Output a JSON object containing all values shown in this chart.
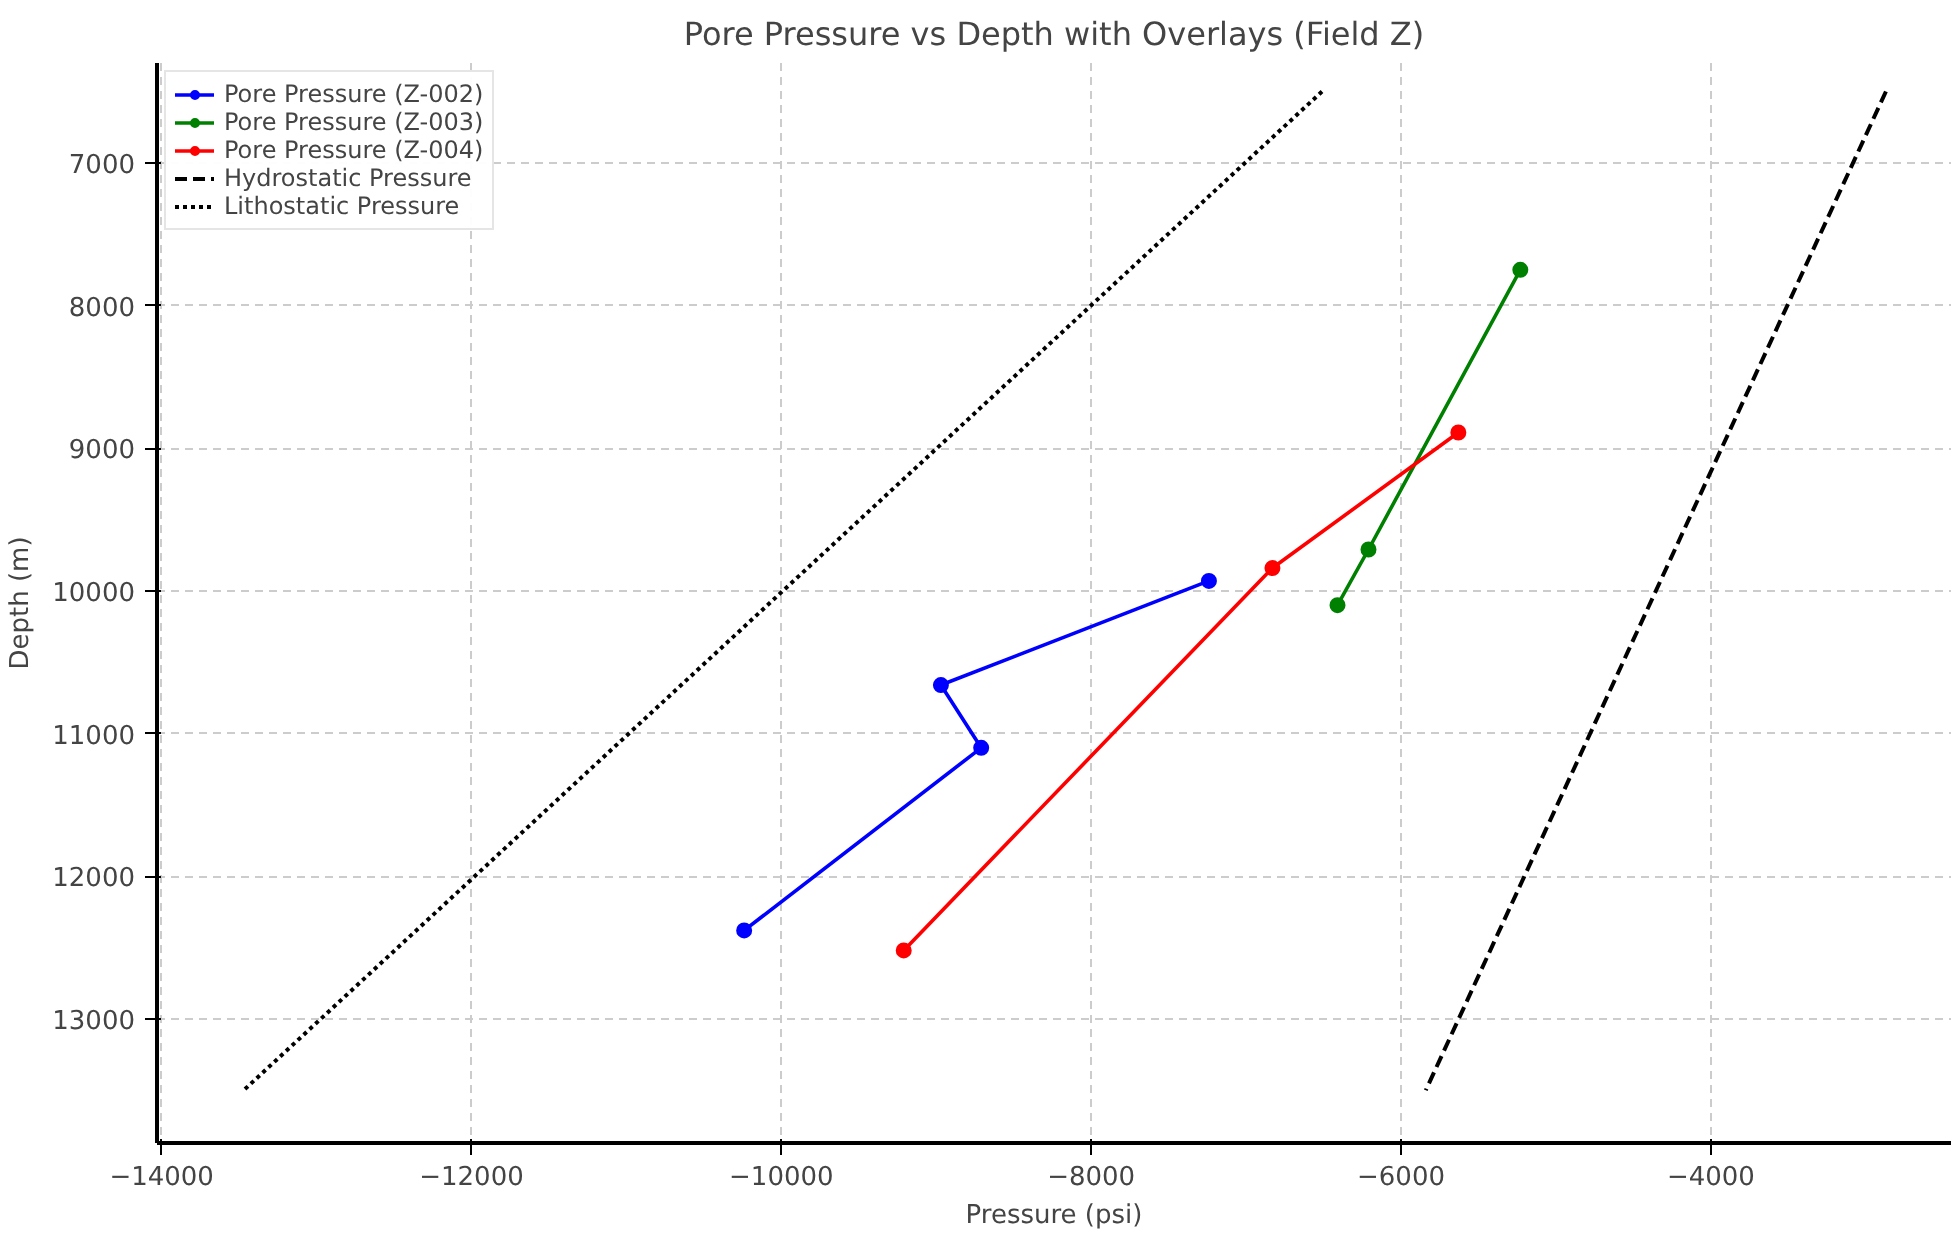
{
  "chart_data": {
    "type": "line",
    "title": "Pore Pressure vs Depth with Overlays (Field Z)",
    "xlabel": "Pressure (psi)",
    "ylabel": "Depth (m)",
    "xlim": [
      -14030,
      -2450
    ],
    "ylim": [
      13870,
      6300
    ],
    "xticks": [
      {
        "value": -14000,
        "label": "−14000"
      },
      {
        "value": -12000,
        "label": "−12000"
      },
      {
        "value": -10000,
        "label": "−10000"
      },
      {
        "value": -8000,
        "label": "−8000"
      },
      {
        "value": -6000,
        "label": "−6000"
      },
      {
        "value": -4000,
        "label": "−4000"
      }
    ],
    "yticks": [
      7000,
      8000,
      9000,
      10000,
      11000,
      12000,
      13000
    ],
    "grid": true,
    "legend": "top left",
    "series": [
      {
        "name": "Pore Pressure (Z-002)",
        "color": "#0000ff",
        "marker": "circle",
        "line_style": "solid",
        "x": [
          -7240,
          -8970,
          -8710,
          -10240
        ],
        "values": [
          9930,
          10660,
          11100,
          12380
        ]
      },
      {
        "name": "Pore Pressure (Z-003)",
        "color": "#008000",
        "marker": "circle",
        "line_style": "solid",
        "x": [
          -5230,
          -6210,
          -6410
        ],
        "values": [
          7750,
          9710,
          10100
        ]
      },
      {
        "name": "Pore Pressure (Z-004)",
        "color": "#ff0000",
        "marker": "circle",
        "line_style": "solid",
        "x": [
          -5630,
          -6830,
          -9210
        ],
        "values": [
          8890,
          9840,
          12520
        ]
      },
      {
        "name": "Hydrostatic Pressure",
        "color": "#000000",
        "marker": "none",
        "line_style": "dashed",
        "x": [
          -2870,
          -5840
        ],
        "values": [
          6500,
          13500
        ]
      },
      {
        "name": "Lithostatic Pressure",
        "color": "#000000",
        "marker": "none",
        "line_style": "dotted",
        "x": [
          -6510,
          -13470
        ],
        "values": [
          6500,
          13500
        ]
      }
    ]
  }
}
